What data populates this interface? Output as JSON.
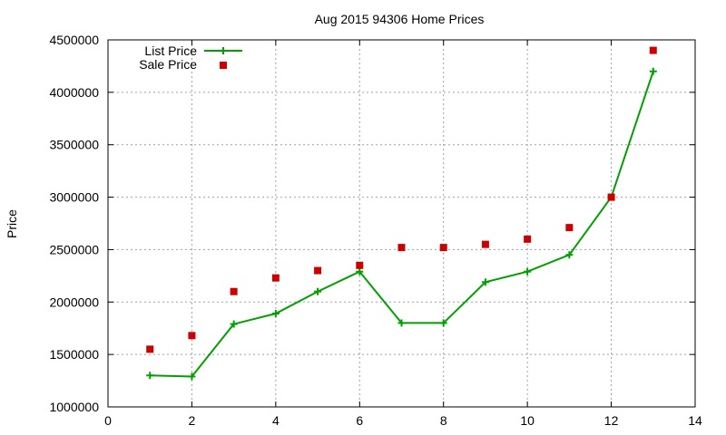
{
  "chart_data": {
    "type": "line",
    "title": "Aug 2015 94306 Home Prices",
    "xlabel": "",
    "ylabel": "Price",
    "xlim": [
      0,
      14
    ],
    "ylim": [
      1000000,
      4500000
    ],
    "x_ticks": [
      0,
      2,
      4,
      6,
      8,
      10,
      12,
      14
    ],
    "y_ticks": [
      1000000,
      1500000,
      2000000,
      2500000,
      3000000,
      3500000,
      4000000,
      4500000
    ],
    "grid": true,
    "legend_position": "top-left",
    "series": [
      {
        "name": "List Price",
        "style": "line-with-plus-markers",
        "color": "#00a000",
        "x": [
          1,
          2,
          3,
          4,
          5,
          6,
          7,
          8,
          9,
          10,
          11,
          12,
          13
        ],
        "values": [
          1300000,
          1290000,
          1790000,
          1890000,
          2100000,
          2290000,
          1800000,
          1800000,
          2190000,
          2290000,
          2450000,
          3000000,
          4200000
        ]
      },
      {
        "name": "Sale Price",
        "style": "square-markers",
        "color": "#cc0000",
        "x": [
          1,
          2,
          3,
          4,
          5,
          6,
          7,
          8,
          9,
          10,
          11,
          12,
          13
        ],
        "values": [
          1550000,
          1680000,
          2100000,
          2230000,
          2300000,
          2350000,
          2520000,
          2520000,
          2550000,
          2600000,
          2710000,
          3000000,
          4400000
        ]
      }
    ]
  }
}
